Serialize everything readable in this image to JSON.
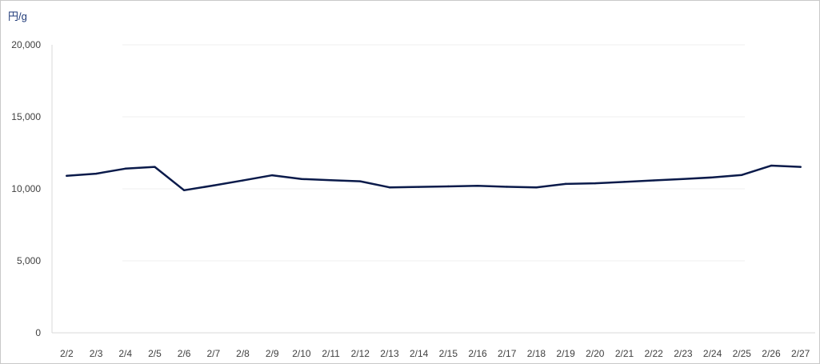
{
  "chart_data": {
    "type": "line",
    "y_unit": "円/g",
    "categories": [
      "2/2",
      "2/3",
      "2/4",
      "2/5",
      "2/6",
      "2/7",
      "2/8",
      "2/9",
      "2/10",
      "2/11",
      "2/12",
      "2/13",
      "2/14",
      "2/15",
      "2/16",
      "2/17",
      "2/18",
      "2/19",
      "2/20",
      "2/21",
      "2/22",
      "2/23",
      "2/24",
      "2/25",
      "2/26",
      "2/27"
    ],
    "series": [
      {
        "values": [
          10900,
          11050,
          11400,
          11520,
          9900,
          10230,
          10580,
          10940,
          10680,
          10600,
          10520,
          10100,
          10130,
          10170,
          10210,
          10140,
          10100,
          10340,
          10380,
          10480,
          10580,
          10680,
          10790,
          10960,
          11610,
          11520
        ],
        "color": "#0a1a4a"
      }
    ],
    "ylim": [
      0,
      20000
    ],
    "yticks": [
      "0",
      "5,000",
      "10,000",
      "15,000",
      "20,000"
    ],
    "ytick_values": [
      0,
      5000,
      10000,
      15000,
      20000
    ],
    "grid": true,
    "legend": "none"
  }
}
